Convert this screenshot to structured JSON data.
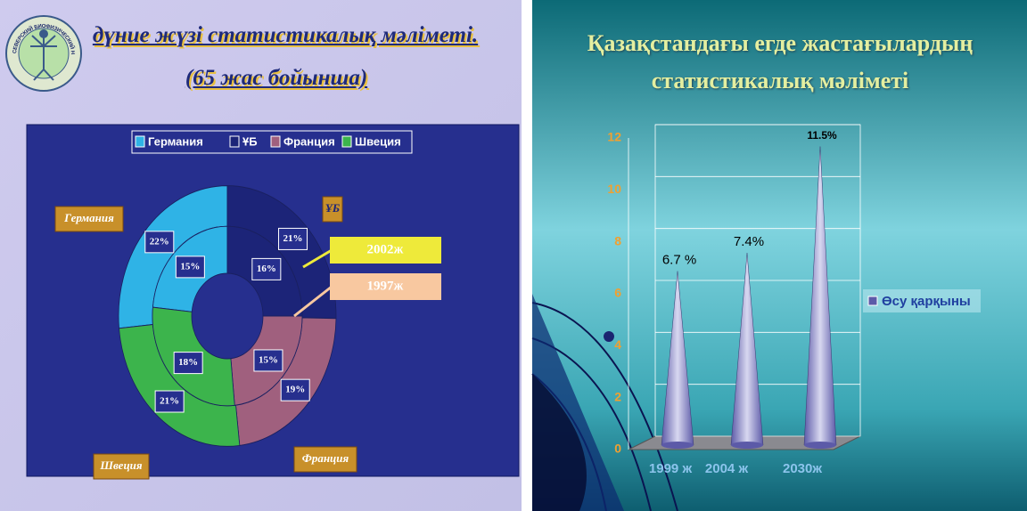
{
  "logo": {
    "text": "СЕВЕРСКИЙ БИОФИЗИЧЕСКИЙ НАУЧНЫЙ ЦЕНТР"
  },
  "chart_data": [
    {
      "type": "doughnut",
      "title": "дүние жүзі статистикалық мәліметі.",
      "subtitle": "(65 жас бойынша)",
      "categories": [
        "Германия",
        "ҰБ",
        "Франция",
        "Швеция"
      ],
      "colors": [
        "#2fb3e6",
        "#1c2478",
        "#a0607e",
        "#3cb44c"
      ],
      "series": [
        {
          "name": "2002ж",
          "color": "#eeea3a",
          "values": [
            22,
            21,
            19,
            21
          ],
          "value_labels": [
            "22%",
            "21%",
            "19%",
            "21%"
          ]
        },
        {
          "name": "1997ж",
          "color": "#f8c8a0",
          "values": [
            15,
            16,
            15,
            18
          ],
          "value_labels": [
            "15%",
            "16%",
            "15%",
            "18%"
          ]
        }
      ],
      "legend": "top"
    },
    {
      "type": "cone",
      "title": "Қазақстандағы егде жастағылардың статистикалық мәліметі",
      "categories": [
        "1999 ж",
        "2004 ж",
        "2030ж"
      ],
      "series": [
        {
          "name": "Өсу қарқыны",
          "color": "#5c5aa8",
          "values": [
            6.7,
            7.4,
            11.5
          ],
          "value_labels": [
            "6.7 %",
            "7.4%",
            "11.5%"
          ]
        }
      ],
      "ylim": [
        0,
        12
      ],
      "yticks": [
        0,
        2,
        4,
        6,
        8,
        10,
        12
      ],
      "grid": true,
      "legend": "right"
    }
  ]
}
